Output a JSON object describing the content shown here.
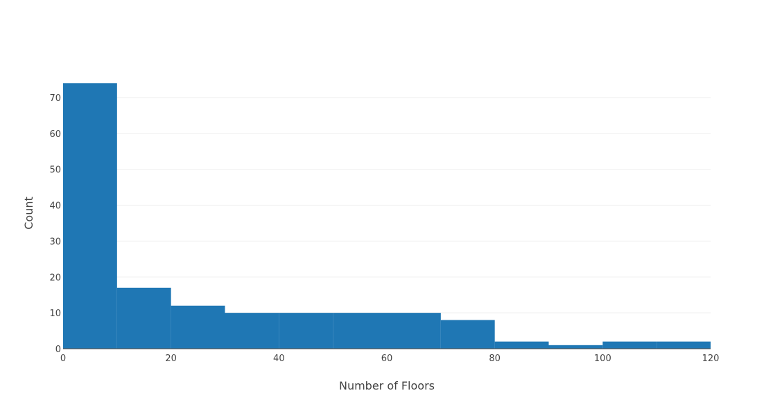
{
  "chart_data": {
    "type": "bar",
    "subtype": "histogram",
    "title": "",
    "xlabel": "Number of Floors",
    "ylabel": "Count",
    "bin_edges": [
      0,
      10,
      20,
      30,
      40,
      50,
      60,
      70,
      80,
      90,
      100,
      110,
      120
    ],
    "values": [
      74,
      17,
      12,
      10,
      10,
      10,
      10,
      8,
      2,
      1,
      2,
      2
    ],
    "xlim": [
      0,
      120
    ],
    "ylim": [
      0,
      77.9
    ],
    "x_ticks": [
      0,
      20,
      40,
      60,
      80,
      100,
      120
    ],
    "x_tick_labels": [
      "0",
      "20",
      "40",
      "60",
      "80",
      "100",
      "120"
    ],
    "y_ticks": [
      0,
      10,
      20,
      30,
      40,
      50,
      60,
      70
    ],
    "y_tick_labels": [
      "0",
      "10",
      "20",
      "30",
      "40",
      "50",
      "60",
      "70"
    ],
    "grid": "horizontal",
    "legend": "none",
    "colors": {
      "bar": "#1f77b4",
      "text": "#444444",
      "grid": "#eeeeee",
      "background": "#ffffff"
    }
  }
}
